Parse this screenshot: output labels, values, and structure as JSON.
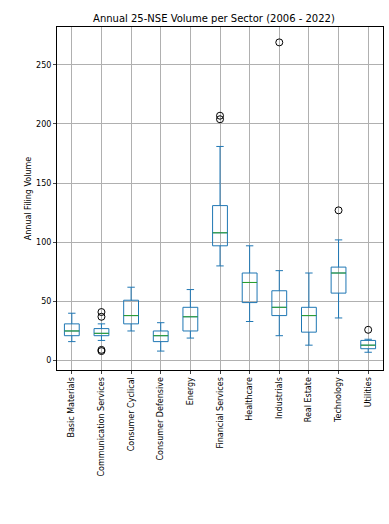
{
  "chart_data": {
    "type": "box",
    "title": "Annual 25-NSE Volume per Sector (2006 - 2022)",
    "y_label": "Annual Filing Volume",
    "categories": [
      "Basic Materials",
      "Communication Services",
      "Consumer Cyclical",
      "Consumer Defensive",
      "Energy",
      "Financial Services",
      "Healthcare",
      "Industrials",
      "Real Estate",
      "Technology",
      "Utilities"
    ],
    "lower": [
      16,
      17,
      25,
      8,
      19,
      80,
      33,
      21,
      13,
      36,
      7
    ],
    "q1": [
      21,
      21,
      31,
      16,
      25,
      97,
      49,
      38,
      24,
      57,
      10
    ],
    "median": [
      25,
      23,
      38,
      21,
      37,
      108,
      66,
      45,
      38,
      74,
      13
    ],
    "q3": [
      31,
      27,
      51,
      25,
      45,
      131,
      74,
      59,
      45,
      79,
      17
    ],
    "upper": [
      40,
      31,
      62,
      32,
      60,
      181,
      97,
      76,
      74,
      102,
      18
    ],
    "outliers": [
      [],
      [
        8,
        9,
        37,
        41
      ],
      [],
      [],
      [],
      [
        204,
        207
      ],
      [],
      [
        269
      ],
      [],
      [
        127
      ],
      [
        26
      ]
    ],
    "color": "#1f77b4",
    "marker": "circle-open",
    "ylim": [
      -8,
      282
    ],
    "yticks": [
      0,
      50,
      100,
      150,
      200,
      250
    ],
    "grid": true
  }
}
